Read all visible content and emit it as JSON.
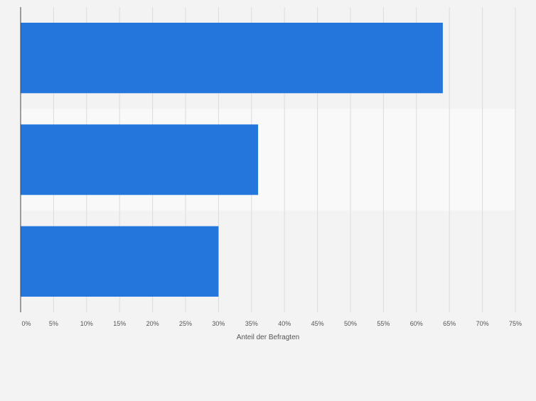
{
  "chart_data": {
    "type": "bar",
    "orientation": "horizontal",
    "categories": [
      "",
      "",
      ""
    ],
    "values": [
      64,
      36,
      30
    ],
    "xlabel": "Anteil der Befragten",
    "ylabel": "",
    "xlim": [
      0,
      75
    ],
    "x_ticks": [
      0,
      5,
      10,
      15,
      20,
      25,
      30,
      35,
      40,
      45,
      50,
      55,
      60,
      65,
      70,
      75
    ],
    "tick_format_suffix": "%",
    "grid": "vertical",
    "legend": "none",
    "colors": {
      "bar": "#2576dc",
      "background": "#f3f3f3",
      "band_alt": "#f9f9f9",
      "grid": "#dcdcdc",
      "axis": "#444444",
      "tick_label": "#555555"
    }
  }
}
